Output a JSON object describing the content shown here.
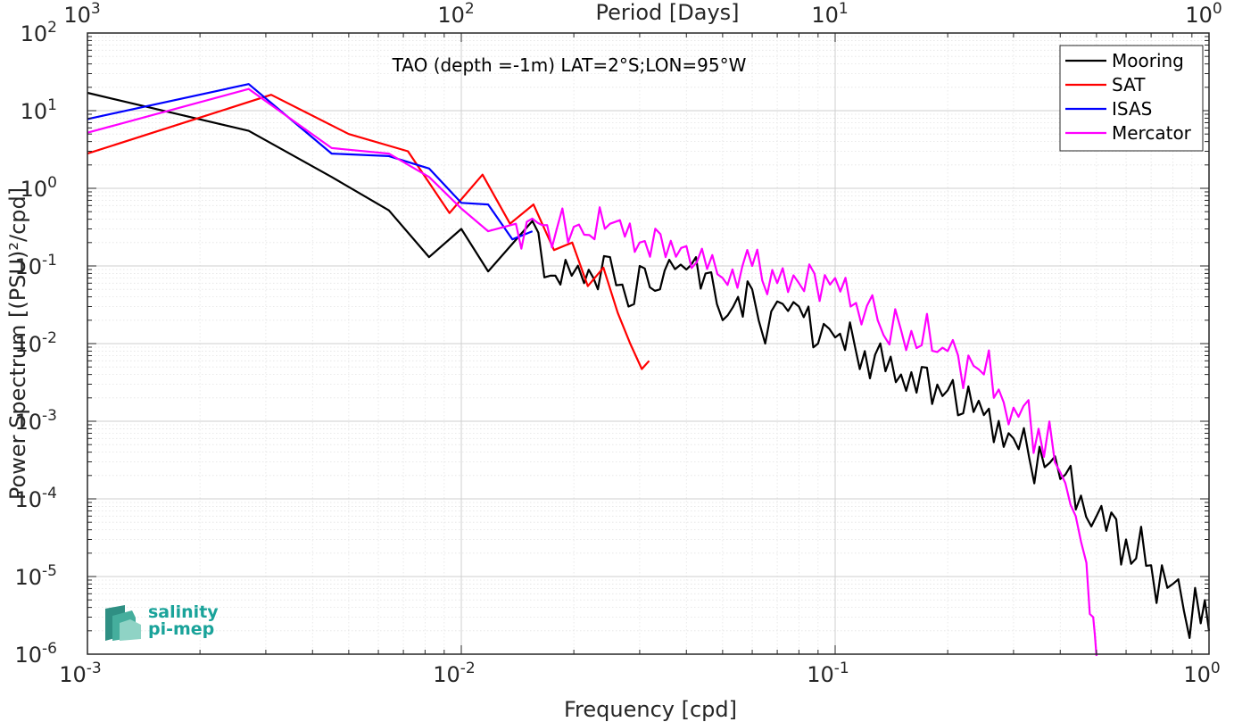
{
  "chart_data": {
    "type": "line",
    "title": "TAO (depth =-1m) LAT=2°S;LON=95°W",
    "xlabel": "Frequency [cpd]",
    "ylabel": "Power Spectrum [(PSU)²/cpd]",
    "top_axis_label": "Period [Days]",
    "x_scale": "log",
    "y_scale": "log",
    "xlim": [
      0.001,
      1
    ],
    "ylim": [
      1e-06,
      100
    ],
    "grid": true,
    "minor_grid": true,
    "legend_position": "top-right",
    "x_ticks": [
      {
        "v": 0.001,
        "base": "10",
        "exp": "-3"
      },
      {
        "v": 0.01,
        "base": "10",
        "exp": "-2"
      },
      {
        "v": 0.1,
        "base": "10",
        "exp": "-1"
      },
      {
        "v": 1,
        "base": "10",
        "exp": "0"
      }
    ],
    "top_ticks": [
      {
        "v": 0.001,
        "base": "10",
        "exp": "3"
      },
      {
        "v": 0.01,
        "base": "10",
        "exp": "2"
      },
      {
        "v": 0.1,
        "base": "10",
        "exp": "1"
      },
      {
        "v": 1,
        "base": "10",
        "exp": "0"
      }
    ],
    "y_ticks": [
      {
        "v": 100,
        "base": "10",
        "exp": "2"
      },
      {
        "v": 10,
        "base": "10",
        "exp": "1"
      },
      {
        "v": 1,
        "base": "10",
        "exp": "0"
      },
      {
        "v": 0.1,
        "base": "10",
        "exp": "-1"
      },
      {
        "v": 0.01,
        "base": "10",
        "exp": "-2"
      },
      {
        "v": 0.001,
        "base": "10",
        "exp": "-3"
      },
      {
        "v": 0.0001,
        "base": "10",
        "exp": "-4"
      },
      {
        "v": 1e-05,
        "base": "10",
        "exp": "-5"
      },
      {
        "v": 1e-06,
        "base": "10",
        "exp": "-6"
      }
    ],
    "series": [
      {
        "name": "Mooring",
        "color": "#000000",
        "noise": [
          0.42,
          0.34,
          0.3,
          0.26,
          0.3,
          0.34,
          0.4,
          0.5
        ],
        "points": [
          [
            0.001,
            17
          ],
          [
            0.0027,
            5.5
          ],
          [
            0.0045,
            1.4
          ],
          [
            0.0064,
            0.52
          ],
          [
            0.0082,
            0.13
          ],
          [
            0.01,
            0.3
          ],
          [
            0.0118,
            0.085
          ],
          [
            0.0155,
            0.38
          ],
          [
            0.0173,
            0.075
          ],
          [
            0.019,
            0.12
          ],
          [
            0.0213,
            0.06
          ],
          [
            0.0232,
            0.05
          ],
          [
            0.025,
            0.13
          ],
          [
            0.028,
            0.03
          ],
          [
            0.03,
            0.1
          ],
          [
            0.034,
            0.05
          ],
          [
            0.036,
            0.12
          ],
          [
            0.04,
            0.09
          ],
          [
            0.045,
            0.08
          ],
          [
            0.05,
            0.02
          ],
          [
            0.055,
            0.04
          ],
          [
            0.06,
            0.05
          ],
          [
            0.065,
            0.01
          ],
          [
            0.07,
            0.035
          ],
          [
            0.08,
            0.03
          ],
          [
            0.09,
            0.01
          ],
          [
            0.1,
            0.012
          ],
          [
            0.12,
            0.008
          ],
          [
            0.15,
            0.004
          ],
          [
            0.2,
            0.0025
          ],
          [
            0.25,
            0.0012
          ],
          [
            0.3,
            0.0006
          ],
          [
            0.4,
            0.00018
          ],
          [
            0.5,
            6e-05
          ],
          [
            0.6,
            3e-05
          ],
          [
            0.7,
            1.4e-05
          ],
          [
            0.8,
            8e-06
          ],
          [
            0.95,
            2.5e-06
          ],
          [
            1.0,
            2e-06
          ]
        ]
      },
      {
        "name": "SAT",
        "color": "#ff0000",
        "noise": [],
        "points": [
          [
            0.001,
            2.8
          ],
          [
            0.0031,
            16
          ],
          [
            0.005,
            5.0
          ],
          [
            0.0072,
            3.0
          ],
          [
            0.0093,
            0.48
          ],
          [
            0.0114,
            1.5
          ],
          [
            0.0135,
            0.35
          ],
          [
            0.0156,
            0.62
          ],
          [
            0.0177,
            0.16
          ],
          [
            0.0198,
            0.2
          ],
          [
            0.0218,
            0.055
          ],
          [
            0.024,
            0.095
          ],
          [
            0.0262,
            0.025
          ],
          [
            0.0283,
            0.01
          ],
          [
            0.0304,
            0.0047
          ],
          [
            0.0318,
            0.006
          ]
        ]
      },
      {
        "name": "ISAS",
        "color": "#0000ff",
        "noise": [],
        "points": [
          [
            0.001,
            7.8
          ],
          [
            0.0027,
            22
          ],
          [
            0.0045,
            2.8
          ],
          [
            0.0064,
            2.6
          ],
          [
            0.0082,
            1.8
          ],
          [
            0.01,
            0.65
          ],
          [
            0.0118,
            0.62
          ],
          [
            0.0137,
            0.22
          ],
          [
            0.0155,
            0.28
          ]
        ]
      },
      {
        "name": "Mercator",
        "color": "#ff00ff",
        "noise": [
          0.38,
          0.34,
          0.3,
          0.28,
          0.32,
          0.36,
          0.42,
          0.5
        ],
        "points": [
          [
            0.001,
            5.2
          ],
          [
            0.0027,
            19
          ],
          [
            0.0045,
            3.3
          ],
          [
            0.0064,
            2.8
          ],
          [
            0.0082,
            1.4
          ],
          [
            0.01,
            0.55
          ],
          [
            0.0118,
            0.28
          ],
          [
            0.014,
            0.35
          ],
          [
            0.016,
            0.36
          ],
          [
            0.018,
            0.3
          ],
          [
            0.02,
            0.32
          ],
          [
            0.022,
            0.25
          ],
          [
            0.025,
            0.35
          ],
          [
            0.03,
            0.2
          ],
          [
            0.04,
            0.18
          ],
          [
            0.05,
            0.07
          ],
          [
            0.06,
            0.1
          ],
          [
            0.07,
            0.06
          ],
          [
            0.08,
            0.06
          ],
          [
            0.1,
            0.07
          ],
          [
            0.11,
            0.03
          ],
          [
            0.13,
            0.02
          ],
          [
            0.15,
            0.015
          ],
          [
            0.2,
            0.008
          ],
          [
            0.25,
            0.004
          ],
          [
            0.3,
            0.0015
          ],
          [
            0.35,
            0.0008
          ],
          [
            0.4,
            0.00022
          ],
          [
            0.44,
            6e-05
          ],
          [
            0.47,
            1.5e-05
          ],
          [
            0.49,
            3e-06
          ],
          [
            0.5,
            8e-07
          ]
        ]
      }
    ]
  },
  "logo": {
    "line1": "salinity",
    "line2": "pi-mep"
  }
}
